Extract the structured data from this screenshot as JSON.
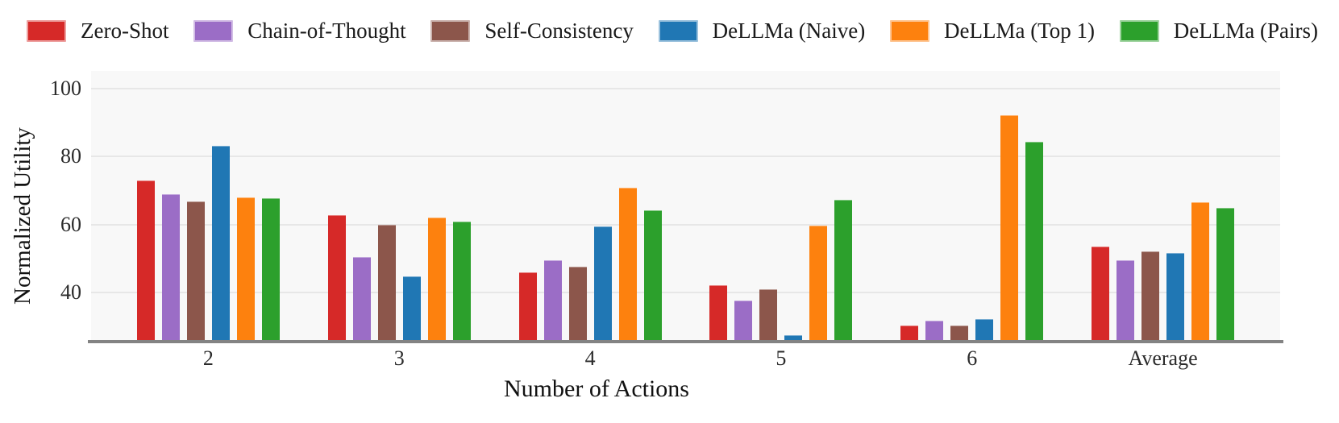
{
  "chart_data": {
    "type": "bar",
    "title": "",
    "xlabel": "Number of Actions",
    "ylabel": "Normalized Utility",
    "categories": [
      "2",
      "3",
      "4",
      "5",
      "6",
      "Average"
    ],
    "series": [
      {
        "name": "Zero-Shot",
        "color": "#d62928",
        "values": [
          72.6,
          62.4,
          45.6,
          41.8,
          30.0,
          53.2
        ]
      },
      {
        "name": "Chain-of-Thought",
        "color": "#9b6dc6",
        "values": [
          68.6,
          50.2,
          49.2,
          37.4,
          31.4,
          49.3
        ]
      },
      {
        "name": "Self-Consistency",
        "color": "#8c564b",
        "values": [
          66.5,
          59.7,
          47.4,
          40.7,
          30.0,
          51.8
        ]
      },
      {
        "name": "DeLLMa (Naive)",
        "color": "#2077b4",
        "values": [
          82.8,
          44.5,
          59.2,
          27.2,
          31.9,
          51.3
        ]
      },
      {
        "name": "DeLLMa (Top 1)",
        "color": "#fd810e",
        "values": [
          67.7,
          61.8,
          70.6,
          59.4,
          91.9,
          66.2
        ]
      },
      {
        "name": "DeLLMa (Pairs)",
        "color": "#2ca02c",
        "values": [
          67.5,
          60.7,
          63.9,
          67.0,
          84.2,
          64.7
        ]
      }
    ],
    "yticks": [
      40,
      60,
      80,
      100
    ],
    "ylim": [
      25.5,
      105.2
    ],
    "grid": true,
    "legend_position": "top",
    "plot_background": "#f8f8f8",
    "gridline_color": "#e7e7e7",
    "axis_line_color": "#838383"
  }
}
